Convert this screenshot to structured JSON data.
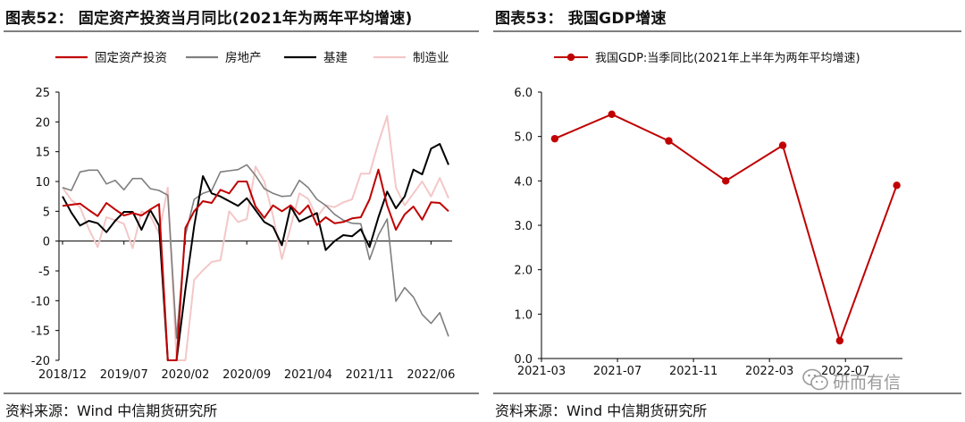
{
  "left": {
    "title": "图表52： 固定资产投资当月同比(2021年为两年平均增速)",
    "source": "资料来源：Wind 中信期货研究所"
  },
  "right": {
    "title": "图表53： 我国GDP增速",
    "source": "资料来源：Wind 中信期货研究所"
  },
  "watermark": {
    "text": "研而有信",
    "icon": "wechat-icon"
  },
  "chart_data": [
    {
      "type": "line",
      "title": "固定资产投资当月同比(2021年为两年平均增速)",
      "ylim": [
        -20,
        25
      ],
      "yticks": [
        25,
        20,
        15,
        10,
        5,
        0,
        -5,
        -10,
        -15,
        -20
      ],
      "xticks": [
        "2018/12",
        "2019/07",
        "2020/02",
        "2020/09",
        "2021/04",
        "2021/11",
        "2022/06"
      ],
      "xtick_index": [
        0,
        7,
        14,
        21,
        28,
        35,
        42
      ],
      "legend_position": "top",
      "series": [
        {
          "name": "固定资产投资",
          "color": "#c00000",
          "width": 2,
          "values": [
            5.9,
            6.1,
            6.3,
            5.2,
            4.2,
            6.4,
            5.3,
            4.3,
            4.7,
            4.3,
            5.3,
            6.2,
            -20,
            -20,
            2.2,
            5.0,
            6.7,
            6.4,
            8.6,
            8.0,
            10.0,
            10.0,
            5.8,
            3.9,
            6.0,
            5.0,
            6.0,
            4.5,
            6.0,
            2.7,
            4.0,
            3.0,
            3.2,
            3.8,
            4.0,
            7.0,
            12.0,
            6.0,
            1.9,
            4.5,
            5.8,
            3.6,
            6.5,
            6.4,
            5.0
          ]
        },
        {
          "name": "房地产",
          "color": "#7f7f7f",
          "width": 1.6,
          "values": [
            9.0,
            8.5,
            11.6,
            11.9,
            11.9,
            9.6,
            10.2,
            8.6,
            10.5,
            10.5,
            8.8,
            8.5,
            7.7,
            -16.3,
            1.0,
            7.0,
            8.0,
            8.5,
            11.6,
            11.8,
            12.0,
            12.8,
            11.0,
            8.8,
            8.0,
            7.5,
            7.6,
            10.2,
            9.0,
            7.0,
            6.0,
            4.5,
            3.5,
            3.0,
            2.9,
            -3.1,
            1.0,
            3.7,
            -10.1,
            -7.8,
            -9.4,
            -12.3,
            -13.8,
            -12.0,
            -16.0
          ]
        },
        {
          "name": "基建",
          "color": "#000000",
          "width": 2,
          "values": [
            7.5,
            4.8,
            2.6,
            3.4,
            3.0,
            1.5,
            3.4,
            4.9,
            4.9,
            1.9,
            5.2,
            2.6,
            -20,
            -20,
            -8.1,
            2.5,
            10.9,
            8.0,
            7.5,
            6.7,
            5.9,
            7.2,
            5.2,
            3.2,
            2.4,
            -0.7,
            5.8,
            3.3,
            4.0,
            4.7,
            -1.5,
            0,
            1.0,
            0.8,
            2.0,
            -1.0,
            4.0,
            8.3,
            5.5,
            7.5,
            12.0,
            11.2,
            15.5,
            16.3,
            12.8
          ]
        },
        {
          "name": "制造业",
          "color": "#f4c7c7",
          "width": 2,
          "values": [
            9.0,
            6.9,
            5.7,
            2.0,
            -1.0,
            4.0,
            3.5,
            2.9,
            -1.2,
            5.0,
            4.3,
            1.3,
            9.0,
            -20,
            -20,
            -6.5,
            -4.9,
            -3.5,
            -3.2,
            5.0,
            3.2,
            3.7,
            12.5,
            10.0,
            4.2,
            -3.0,
            2.4,
            8.0,
            7.1,
            4.0,
            6.0,
            5.7,
            6.5,
            7.0,
            11.3,
            11.3,
            16.5,
            21.0,
            9.0,
            6.0,
            8.0,
            10.0,
            7.5,
            10.6,
            7.2
          ]
        }
      ]
    },
    {
      "type": "line",
      "title": "我国GDP增速",
      "ylim": [
        0,
        6
      ],
      "yticks": [
        "6.0",
        "5.0",
        "4.0",
        "3.0",
        "2.0",
        "1.0",
        "0.0"
      ],
      "xticks": [
        "2021-03",
        "2021-07",
        "2021-11",
        "2022-03",
        "2022-07"
      ],
      "legend_position": "top",
      "series": [
        {
          "name": "我国GDP:当季同比(2021年上半年为两年平均增速)",
          "color": "#c00000",
          "width": 2,
          "months": [
            0,
            3,
            6,
            9,
            12,
            15,
            18
          ],
          "values": [
            4.95,
            5.5,
            4.9,
            4.0,
            4.8,
            0.4,
            3.9
          ]
        }
      ]
    }
  ]
}
